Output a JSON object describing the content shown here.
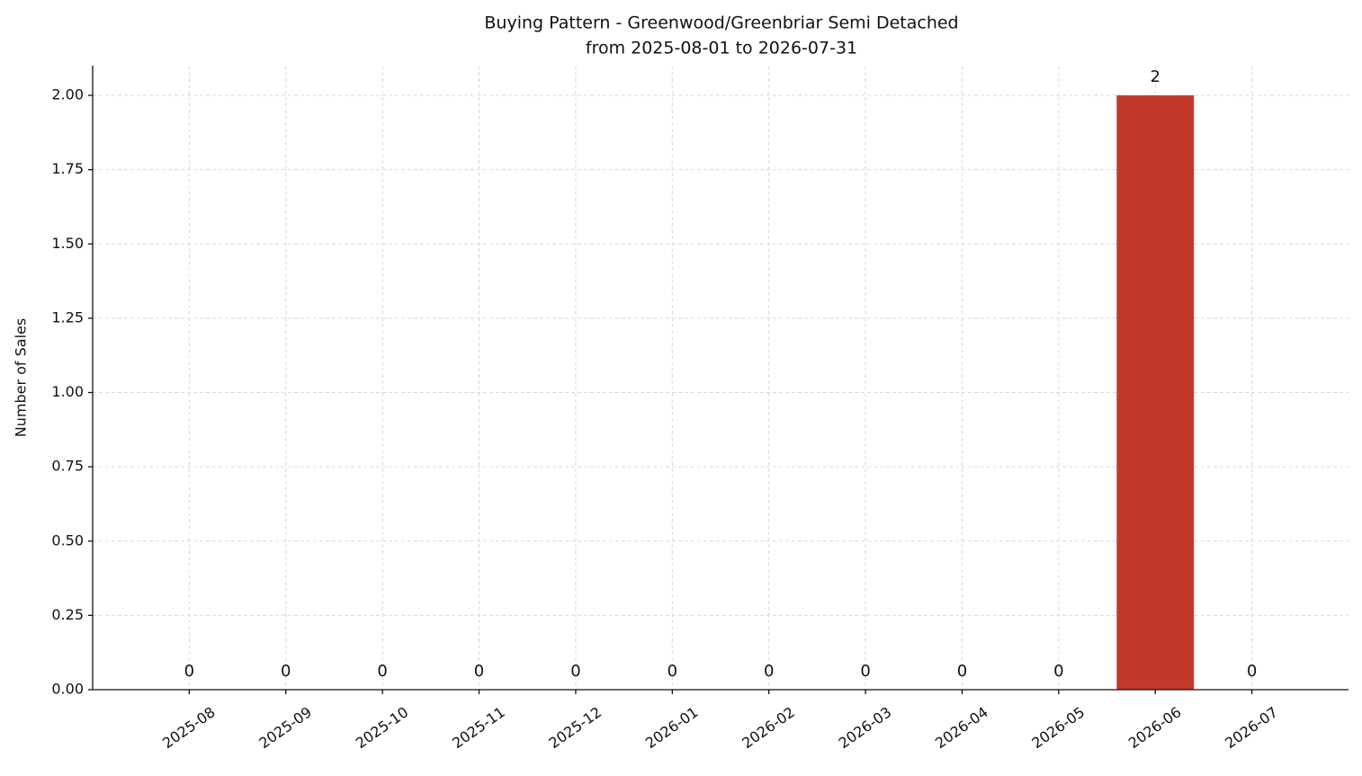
{
  "chart_data": {
    "type": "bar",
    "title": "Buying Pattern - Greenwood/Greenbriar Semi Detached",
    "subtitle": "from 2025-08-01 to 2026-07-31",
    "y_label": "Number of Sales",
    "categories": [
      "2025-08",
      "2025-09",
      "2025-10",
      "2025-11",
      "2025-12",
      "2026-01",
      "2026-02",
      "2026-03",
      "2026-04",
      "2026-05",
      "2026-06",
      "2026-07"
    ],
    "values": [
      0,
      0,
      0,
      0,
      0,
      0,
      0,
      0,
      0,
      0,
      2,
      0
    ],
    "color": "#c0392b",
    "ylim": [
      0,
      2.1
    ],
    "yticks": [
      {
        "value": 0,
        "label": "0.00"
      },
      {
        "value": 0.25,
        "label": "0.25"
      },
      {
        "value": 0.5,
        "label": "0.50"
      },
      {
        "value": 0.75,
        "label": "0.75"
      },
      {
        "value": 1,
        "label": "1.00"
      },
      {
        "value": 1.25,
        "label": "1.25"
      },
      {
        "value": 1.5,
        "label": "1.50"
      },
      {
        "value": 1.75,
        "label": "1.75"
      },
      {
        "value": 2,
        "label": "2.00"
      }
    ],
    "grid": true
  }
}
